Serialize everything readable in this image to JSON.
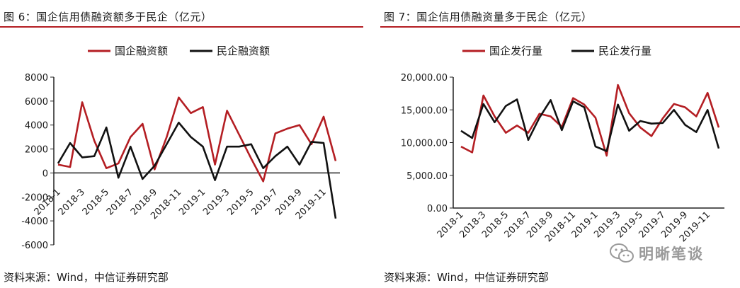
{
  "left": {
    "title": "图 6：国企信用债融资额多于民企（亿元）",
    "source": "资料来源：Wind，中信证券研究部"
  },
  "right": {
    "title": "图 7：国企信用债融资量多于民企（亿元）",
    "source": "资料来源：Wind，中信证券研究部"
  },
  "watermark": {
    "text": "明晰笔谈",
    "icon": "wechat-icon"
  },
  "colors": {
    "accent": "#b41e23",
    "soe": "#b41e23",
    "private": "#111111"
  },
  "chart_data": [
    {
      "type": "line",
      "title": "",
      "xlabel": "",
      "ylabel": "",
      "ylim": [
        -6000,
        8000
      ],
      "yticks": [
        -6000,
        -4000,
        -2000,
        0,
        2000,
        4000,
        6000,
        8000
      ],
      "ytick_labels": [
        "-6000",
        "-4000",
        "-2000",
        "0",
        "2000",
        "4000",
        "6000",
        "8000"
      ],
      "categories": [
        "2018-1",
        "2018-2",
        "2018-3",
        "2018-4",
        "2018-5",
        "2018-6",
        "2018-7",
        "2018-8",
        "2018-9",
        "2018-10",
        "2018-11",
        "2018-12",
        "2019-1",
        "2019-2",
        "2019-3",
        "2019-4",
        "2019-5",
        "2019-6",
        "2019-7",
        "2019-8",
        "2019-9",
        "2019-10",
        "2019-11",
        "2019-12"
      ],
      "xtick_labels": [
        "2018-1",
        "2018-3",
        "2018-5",
        "2018-7",
        "2018-9",
        "2018-11",
        "2019-1",
        "2019-3",
        "2019-5",
        "2019-7",
        "2019-9",
        "2019-11"
      ],
      "legend": "top",
      "series": [
        {
          "name": "国企融资额",
          "color": "#b41e23",
          "values": [
            700,
            500,
            5900,
            2700,
            400,
            800,
            3000,
            4100,
            300,
            3000,
            6300,
            5000,
            5500,
            700,
            5200,
            3200,
            1200,
            -700,
            3300,
            3700,
            4000,
            2400,
            4700,
            1000
          ]
        },
        {
          "name": "民企融资额",
          "color": "#111111",
          "values": [
            800,
            2500,
            1300,
            1400,
            3800,
            -400,
            2200,
            -500,
            600,
            2400,
            4200,
            3000,
            2200,
            -600,
            2200,
            2200,
            2400,
            400,
            1400,
            2200,
            700,
            2600,
            2500,
            -3800
          ]
        }
      ]
    },
    {
      "type": "line",
      "title": "",
      "xlabel": "",
      "ylabel": "",
      "ylim": [
        0,
        20000
      ],
      "yticks": [
        0,
        5000,
        10000,
        15000,
        20000
      ],
      "ytick_labels": [
        "0.00",
        "5,000.00",
        "10,000.00",
        "15,000.00",
        "20,000.00"
      ],
      "categories": [
        "2018-1",
        "2018-2",
        "2018-3",
        "2018-4",
        "2018-5",
        "2018-6",
        "2018-7",
        "2018-8",
        "2018-9",
        "2018-10",
        "2018-11",
        "2018-12",
        "2019-1",
        "2019-2",
        "2019-3",
        "2019-4",
        "2019-5",
        "2019-6",
        "2019-7",
        "2019-8",
        "2019-9",
        "2019-10",
        "2019-11",
        "2019-12"
      ],
      "xtick_labels": [
        "2018-1",
        "2018-3",
        "2018-5",
        "2018-7",
        "2018-9",
        "2018-11",
        "2019-1",
        "2019-3",
        "2019-5",
        "2019-7",
        "2019-9",
        "2019-11"
      ],
      "legend": "top",
      "series": [
        {
          "name": "国企发行量",
          "color": "#b41e23",
          "values": [
            9400,
            8500,
            17200,
            14000,
            11500,
            12600,
            11500,
            14400,
            14000,
            12400,
            16800,
            15800,
            13800,
            8000,
            18800,
            14500,
            12300,
            11000,
            13700,
            15900,
            15400,
            14000,
            17600,
            12300
          ]
        },
        {
          "name": "民企发行量",
          "color": "#111111",
          "values": [
            11800,
            10700,
            15900,
            13100,
            15600,
            16600,
            10400,
            13800,
            16500,
            11900,
            16300,
            15400,
            9400,
            8700,
            15800,
            11800,
            13300,
            12900,
            13000,
            15000,
            12700,
            11600,
            15000,
            9100
          ]
        }
      ]
    }
  ]
}
